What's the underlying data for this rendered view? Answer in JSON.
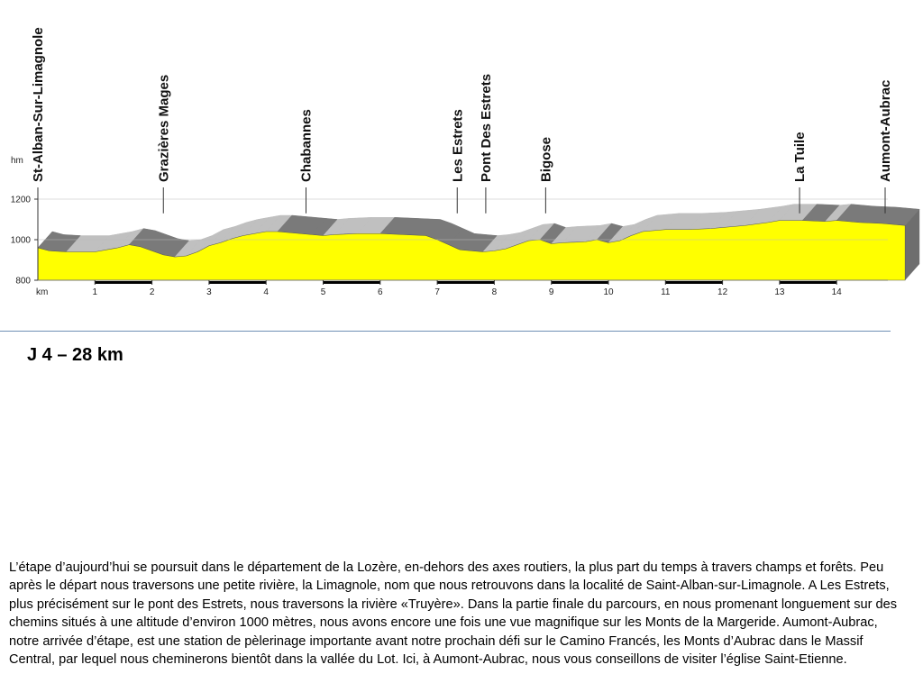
{
  "chart_data": {
    "type": "area",
    "title": "",
    "xlabel": "km",
    "ylabel": "hm",
    "xlim": [
      0,
      15.5
    ],
    "ylim": [
      800,
      1200
    ],
    "x_ticks": [
      "1",
      "2",
      "3",
      "4",
      "5",
      "6",
      "7",
      "8",
      "9",
      "10",
      "11",
      "12",
      "13",
      "14"
    ],
    "y_ticks": [
      "800",
      "1000",
      "1200"
    ],
    "grid": false,
    "series": [
      {
        "x": [
          0,
          0.2,
          0.5,
          1,
          1.4,
          1.6,
          1.8,
          2,
          2.2,
          2.4,
          2.6,
          2.8,
          3,
          3.2,
          3.4,
          3.6,
          3.8,
          4,
          4.2,
          4.4,
          4.6,
          4.8,
          5,
          5.2,
          5.6,
          6,
          6.4,
          6.8,
          7,
          7.2,
          7.4,
          7.6,
          7.8,
          8,
          8.2,
          8.4,
          8.6,
          8.8,
          9,
          9.2,
          9.6,
          9.8,
          10,
          10.2,
          10.4,
          10.6,
          11,
          11.4,
          11.8,
          12,
          12.4,
          12.8,
          13,
          13.4,
          13.8,
          14,
          14.4,
          14.8,
          15,
          15.2
        ],
        "y": [
          960,
          945,
          940,
          940,
          960,
          975,
          965,
          945,
          925,
          915,
          920,
          940,
          970,
          985,
          1005,
          1020,
          1030,
          1040,
          1040,
          1035,
          1030,
          1025,
          1020,
          1025,
          1030,
          1030,
          1025,
          1020,
          1000,
          975,
          950,
          945,
          940,
          945,
          955,
          975,
          995,
          1000,
          980,
          985,
          990,
          1000,
          985,
          995,
          1020,
          1040,
          1050,
          1050,
          1055,
          1060,
          1070,
          1085,
          1095,
          1095,
          1090,
          1095,
          1085,
          1080,
          1075,
          1070
        ]
      }
    ],
    "waypoints": [
      {
        "name": "St-Alban-Sur-Limagnole",
        "km": 0
      },
      {
        "name": "Grazières Mages",
        "km": 2.2
      },
      {
        "name": "Chabannes",
        "km": 4.7
      },
      {
        "name": "Les Estrets",
        "km": 7.35
      },
      {
        "name": "Pont Des Estrets",
        "km": 7.85
      },
      {
        "name": "Bigose",
        "km": 8.9
      },
      {
        "name": "La Tuile",
        "km": 13.35
      },
      {
        "name": "Aumont-Aubrac",
        "km": 14.85
      }
    ],
    "colors": {
      "fill": "#ffff00",
      "ridge_light": "#c0c0c0",
      "ridge_dark": "#7a7a7a",
      "side_wall": "#6e6e6e",
      "baseline_bar": "#000000"
    }
  },
  "page": {
    "stage_title": "J 4 – 28 km",
    "description": "L’étape d’aujourd’hui se poursuit dans le département de la Lozère, en-dehors des axes routiers, la plus part du temps à travers champs et forêts. Peu après le départ nous traversons une petite rivière, la Limagnole, nom que nous retrouvons dans la localité de Saint-Alban-sur-Limagnole. A Les Estrets, plus précisément sur le pont des Estrets, nous traversons la rivière «Truyère». Dans la partie finale du parcours, en nous promenant longuement sur des chemins situés à une altitude d’environ 1000 mètres, nous avons encore une fois une vue magnifique sur les Monts de la Margeride. Aumont-Aubrac, notre arrivée d’étape, est une station de pèlerinage importante avant notre prochain défi sur le Camino Francés, les Monts d’Aubrac dans le Massif Central, par lequel nous cheminerons bientôt dans la vallée du Lot. Ici, à Aumont-Aubrac, nous vous conseillons de visiter l’église Saint-Etienne."
  }
}
